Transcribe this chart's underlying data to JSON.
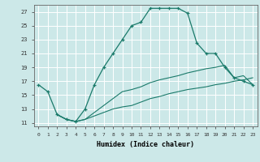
{
  "xlabel": "Humidex (Indice chaleur)",
  "background_color": "#cce8e8",
  "grid_color": "#ffffff",
  "line_color": "#1a7a6a",
  "xlim": [
    -0.5,
    23.5
  ],
  "ylim": [
    10.5,
    28.0
  ],
  "yticks": [
    11,
    13,
    15,
    17,
    19,
    21,
    23,
    25,
    27
  ],
  "xticks": [
    0,
    1,
    2,
    3,
    4,
    5,
    6,
    7,
    8,
    9,
    10,
    11,
    12,
    13,
    14,
    15,
    16,
    17,
    18,
    19,
    20,
    21,
    22,
    23
  ],
  "line1_x": [
    0,
    1,
    2,
    3,
    4,
    5,
    6,
    7,
    8,
    9,
    10,
    11,
    12,
    13,
    14,
    15,
    16,
    17,
    18,
    19,
    20,
    21,
    22,
    23
  ],
  "line1_y": [
    16.5,
    15.5,
    12.2,
    11.5,
    11.2,
    13.0,
    16.5,
    19.0,
    21.0,
    23.0,
    25.0,
    25.5,
    27.5,
    27.5,
    27.5,
    27.5,
    26.8,
    22.5,
    21.0,
    21.0,
    19.0,
    17.5,
    17.0,
    16.5
  ],
  "line2_x": [
    2,
    3,
    4,
    5,
    6,
    7,
    8,
    9,
    10,
    11,
    12,
    13,
    14,
    15,
    16,
    17,
    18,
    19,
    20,
    21,
    22,
    23
  ],
  "line2_y": [
    12.2,
    11.5,
    11.2,
    11.5,
    12.0,
    12.5,
    13.0,
    13.3,
    13.5,
    14.0,
    14.5,
    14.8,
    15.2,
    15.5,
    15.8,
    16.0,
    16.2,
    16.5,
    16.7,
    17.0,
    17.2,
    17.5
  ],
  "line3_x": [
    2,
    3,
    4,
    5,
    6,
    7,
    8,
    9,
    10,
    11,
    12,
    13,
    14,
    15,
    16,
    17,
    18,
    19,
    20,
    21,
    22,
    23
  ],
  "line3_y": [
    12.2,
    11.5,
    11.2,
    11.5,
    12.5,
    13.5,
    14.5,
    15.5,
    15.8,
    16.2,
    16.8,
    17.2,
    17.5,
    17.8,
    18.2,
    18.5,
    18.8,
    19.0,
    19.3,
    17.5,
    17.8,
    16.5
  ]
}
